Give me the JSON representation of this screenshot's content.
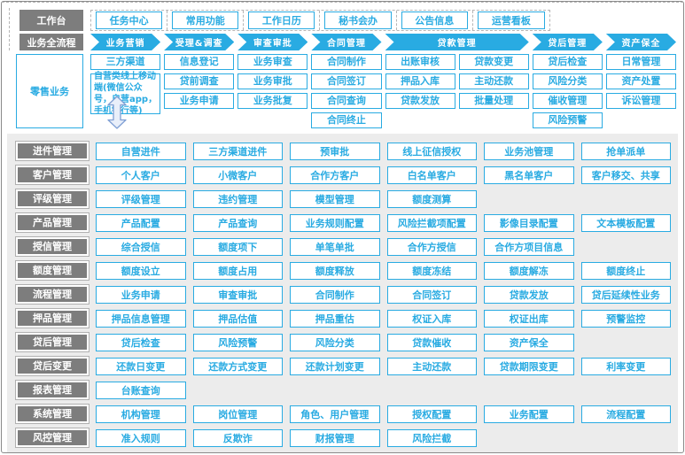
{
  "colors": {
    "accent_blue": "#29ABE2",
    "label_gray": "#7D7D7D",
    "panel_bg": "#ECECEC",
    "arrow_fill": "#E9EFFA",
    "arrow_outline": "#7F9FD4"
  },
  "workbench": {
    "label": "工作台",
    "items": [
      "任务中心",
      "常用功能",
      "工作日历",
      "秘书会办",
      "公告信息",
      "运营看板"
    ]
  },
  "process_flow": {
    "label": "业务全流程",
    "stages": [
      {
        "label": "业务营销",
        "span": 1
      },
      {
        "label": "受理&调查",
        "span": 1
      },
      {
        "label": "审查审批",
        "span": 1
      },
      {
        "label": "合同管理",
        "span": 1
      },
      {
        "label": "贷款管理",
        "span": 2
      },
      {
        "label": "贷后管理",
        "span": 1
      },
      {
        "label": "资产保全",
        "span": 1
      }
    ]
  },
  "retail_business": {
    "label": "零售业务",
    "columns": [
      {
        "items": [
          {
            "text": "三方渠道",
            "tall": false
          },
          {
            "text": "自营类线上移动端(微信公众号，自营app，手机银行等)",
            "tall": true
          }
        ]
      },
      {
        "items": [
          {
            "text": "信息登记",
            "tall": false
          },
          {
            "text": "贷前调查",
            "tall": false
          },
          {
            "text": "业务申请",
            "tall": false
          }
        ]
      },
      {
        "items": [
          {
            "text": "业务审查",
            "tall": false
          },
          {
            "text": "业务审批",
            "tall": false
          },
          {
            "text": "业务批复",
            "tall": false
          }
        ]
      },
      {
        "items": [
          {
            "text": "合同制作",
            "tall": false
          },
          {
            "text": "合同签订",
            "tall": false
          },
          {
            "text": "合同查询",
            "tall": false
          },
          {
            "text": "合同终止",
            "tall": false
          }
        ]
      },
      {
        "items": [
          {
            "text": "出账审核",
            "tall": false
          },
          {
            "text": "押品入库",
            "tall": false
          },
          {
            "text": "贷款发放",
            "tall": false
          }
        ]
      },
      {
        "items": [
          {
            "text": "贷款变更",
            "tall": false
          },
          {
            "text": "主动还款",
            "tall": false
          },
          {
            "text": "批量处理",
            "tall": false
          }
        ]
      },
      {
        "items": [
          {
            "text": "贷后检查",
            "tall": false
          },
          {
            "text": "风险分类",
            "tall": false
          },
          {
            "text": "催收管理",
            "tall": false
          },
          {
            "text": "风险预警",
            "tall": false
          }
        ]
      },
      {
        "items": [
          {
            "text": "日常管理",
            "tall": false
          },
          {
            "text": "资产处置",
            "tall": false
          },
          {
            "text": "诉讼管理",
            "tall": false
          }
        ]
      }
    ]
  },
  "icons": {
    "connector": "up-down-double-arrow"
  },
  "modules": [
    {
      "label": "进件管理",
      "items": [
        "自营进件",
        "三方渠道进件",
        "预审批",
        "线上征信授权",
        "业务池管理",
        "抢单派单"
      ]
    },
    {
      "label": "客户管理",
      "items": [
        "个人客户",
        "小微客户",
        "合作方客户",
        "白名单客户",
        "黑名单客户",
        "客户移交、共享"
      ]
    },
    {
      "label": "评级管理",
      "items": [
        "评级管理",
        "违约管理",
        "模型管理",
        "额度测算"
      ]
    },
    {
      "label": "产品管理",
      "items": [
        "产品配置",
        "产品查询",
        "业务规则配置",
        "风险拦截项配置",
        "影像目录配置",
        "文本模板配置"
      ]
    },
    {
      "label": "授信管理",
      "items": [
        "综合授信",
        "额度项下",
        "单笔单批",
        "合作方授信",
        "合作方项目信息"
      ]
    },
    {
      "label": "额度管理",
      "items": [
        "额度设立",
        "额度占用",
        "额度释放",
        "额度冻结",
        "额度解冻",
        "额度终止"
      ]
    },
    {
      "label": "流程管理",
      "items": [
        "业务申请",
        "审查审批",
        "合同制作",
        "合同签订",
        "贷款发放",
        "贷后延续性业务"
      ]
    },
    {
      "label": "押品管理",
      "items": [
        "押品信息管理",
        "押品估值",
        "押品重估",
        "权证入库",
        "权证出库",
        "预警监控"
      ]
    },
    {
      "label": "贷后管理",
      "items": [
        "贷后检查",
        "风险预警",
        "风险分类",
        "贷款催收",
        "资产保全"
      ]
    },
    {
      "label": "贷后变更",
      "items": [
        "还款日变更",
        "还款方式变更",
        "还款计划变更",
        "主动还款",
        "贷款期限变更",
        "利率变更"
      ]
    },
    {
      "label": "报表管理",
      "items": [
        "台账查询"
      ]
    },
    {
      "label": "系统管理",
      "items": [
        "机构管理",
        "岗位管理",
        "角色、用户管理",
        "授权配置",
        "业务配置",
        "流程配置"
      ]
    },
    {
      "label": "风控管理",
      "items": [
        "准入规则",
        "反欺诈",
        "财报管理",
        "风险拦截"
      ]
    }
  ]
}
